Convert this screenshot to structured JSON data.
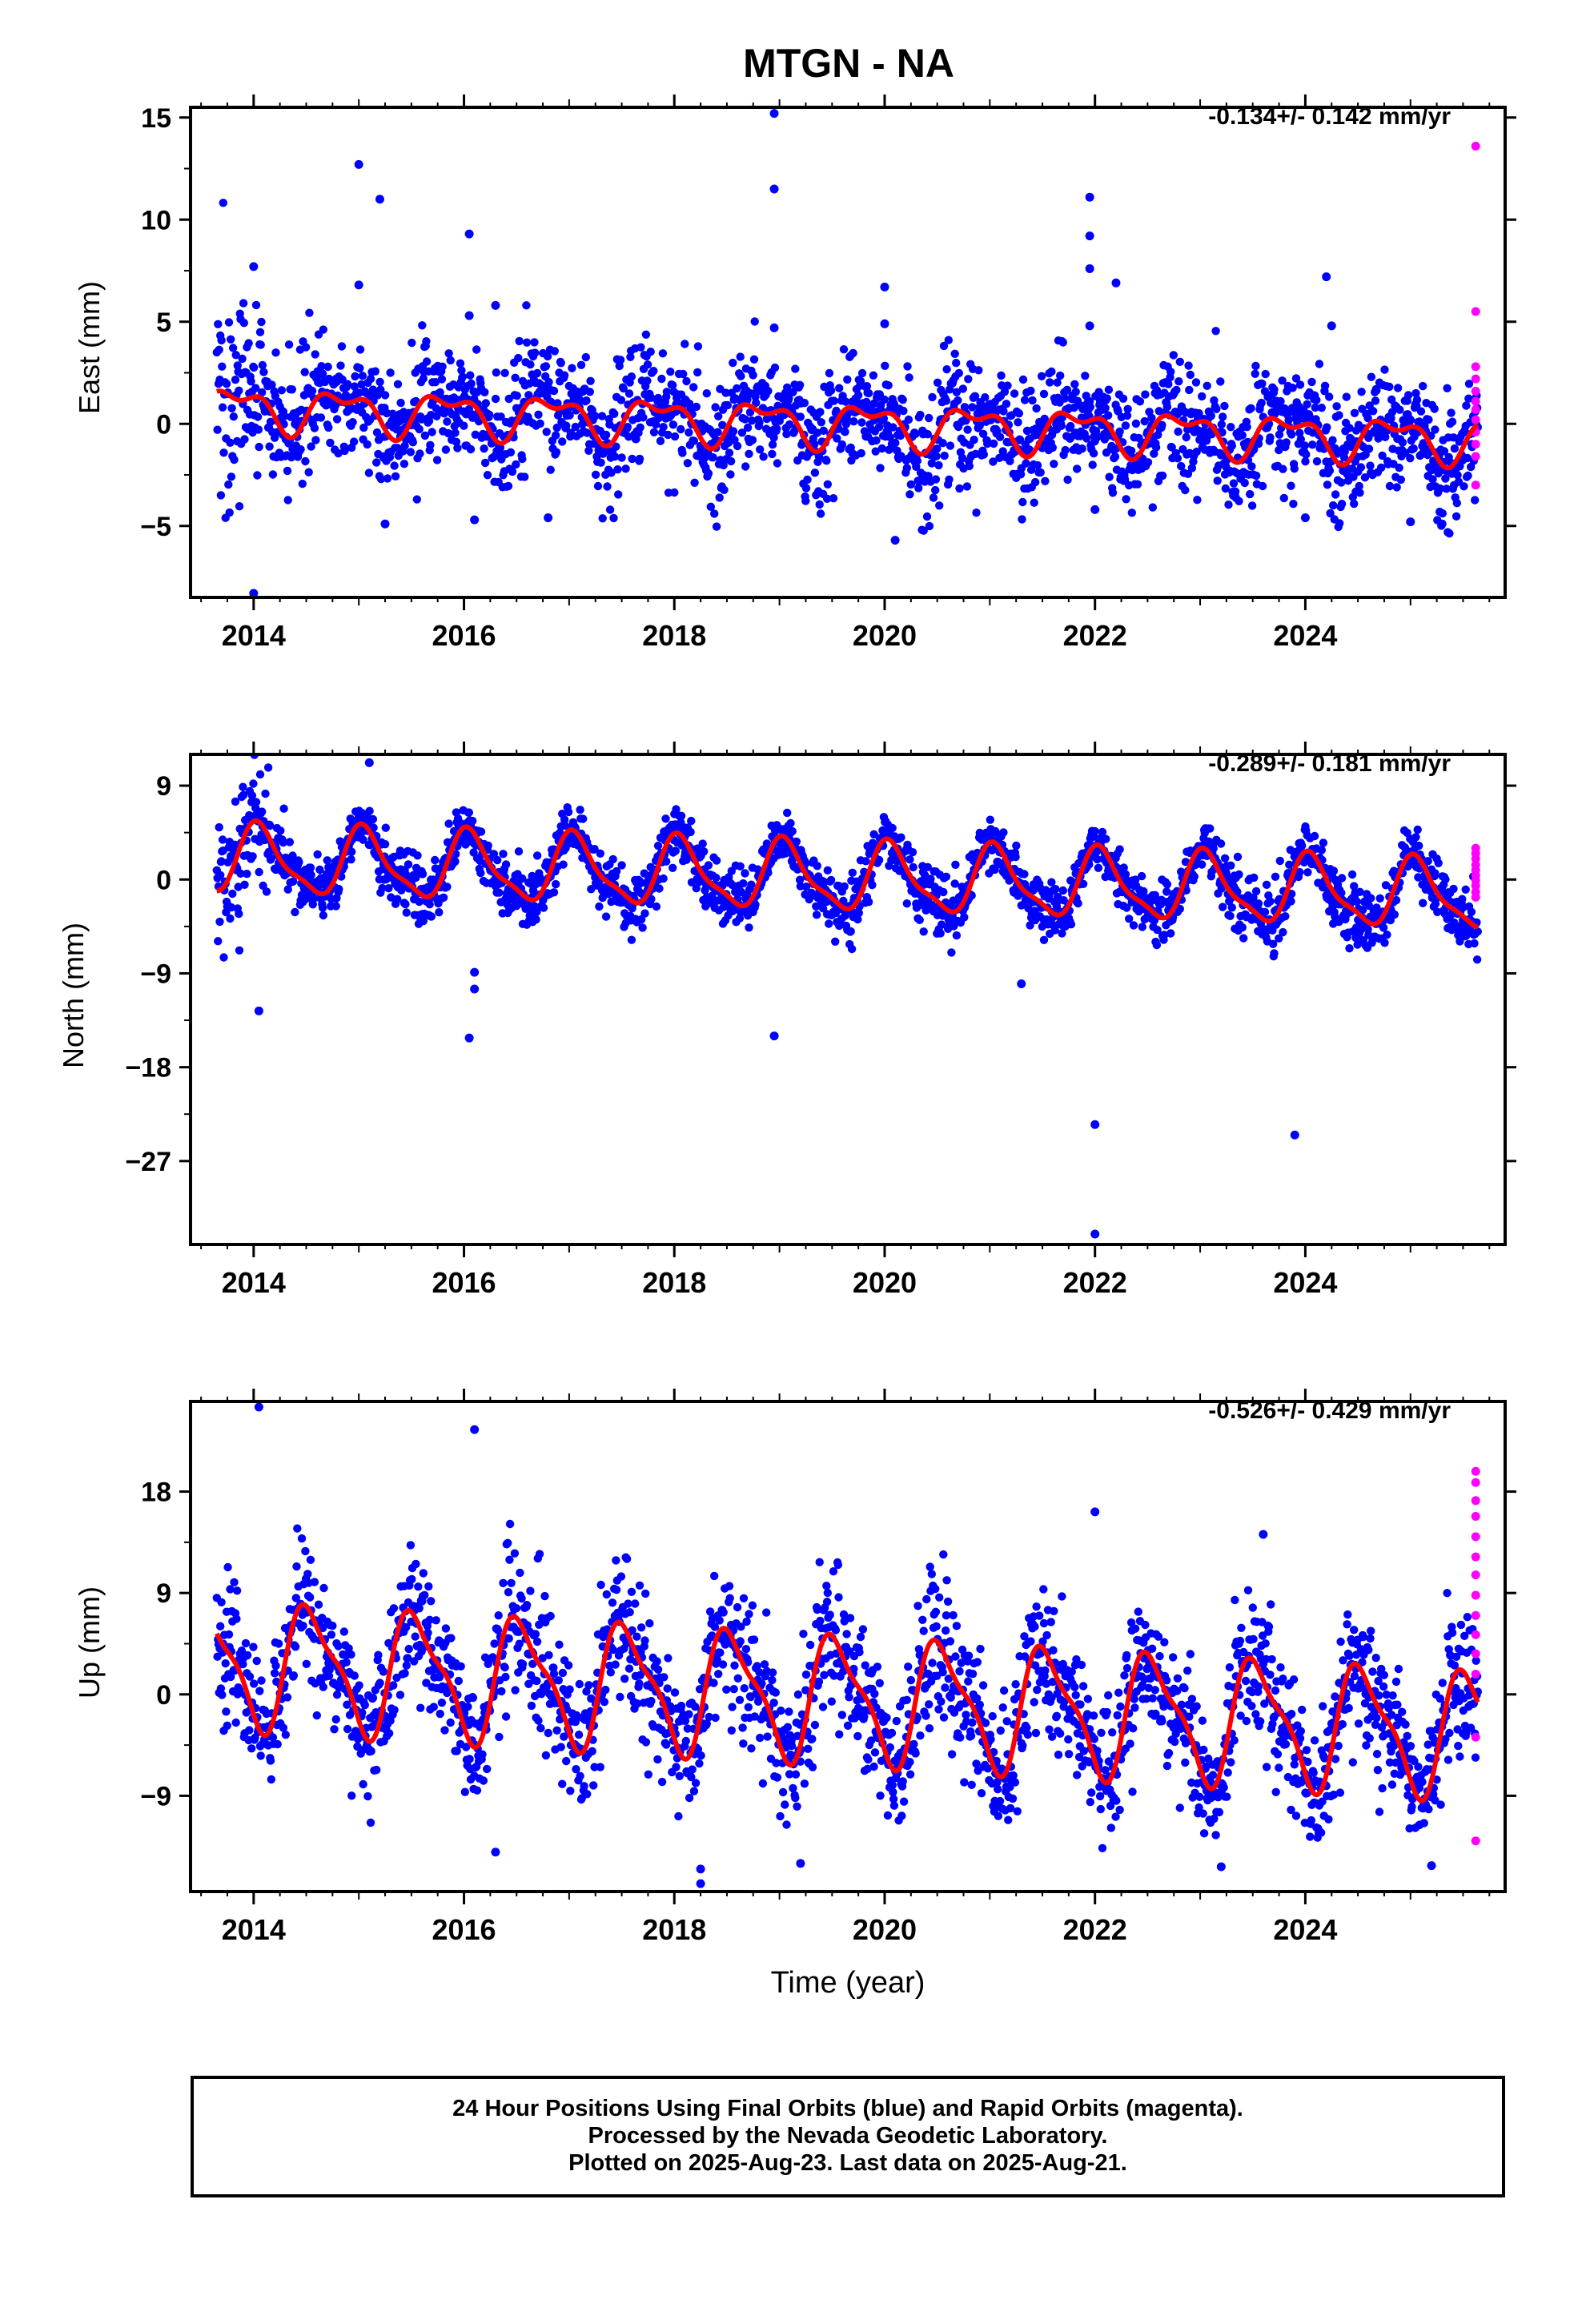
{
  "chart_data": {
    "type": "scatter",
    "title": "MTGN - NA",
    "xlabel": "Time (year)",
    "x_ticks": [
      "2014",
      "2016",
      "2018",
      "2020",
      "2022",
      "2024"
    ],
    "x_range": [
      2013.4,
      2025.9
    ],
    "data_span": [
      2013.65,
      2025.64
    ],
    "final_color": "#0000ff",
    "rapid_color": "#ff00ff",
    "fit_color": "#ff0000",
    "panels": [
      {
        "name": "east",
        "ylabel": "East (mm)",
        "rate_text": "-0.134+/- 0.142 mm/yr",
        "ylim": [
          -8.5,
          15.5
        ],
        "yticks": [
          15,
          10,
          5,
          0,
          -5
        ],
        "ytick_labels": [
          "15",
          "10",
          "5",
          "0",
          "−5"
        ],
        "rate": -0.134,
        "offset": 0.8,
        "annual_amp": 0.9,
        "annual_phase": 2.6,
        "semi_amp": 0.5,
        "semi_phase": 0.2,
        "noise": 1.35,
        "start_boost": 0.3,
        "outliers": [
          [
            2014.0,
            7.7
          ],
          [
            2014.0,
            -8.3
          ],
          [
            2015.0,
            12.7
          ],
          [
            2015.0,
            6.8
          ],
          [
            2015.2,
            11.0
          ],
          [
            2015.25,
            -4.9
          ],
          [
            2016.05,
            9.3
          ],
          [
            2016.1,
            -4.7
          ],
          [
            2016.3,
            5.8
          ],
          [
            2016.05,
            5.3
          ],
          [
            2016.8,
            -4.6
          ],
          [
            2018.95,
            15.2
          ],
          [
            2018.95,
            11.5
          ],
          [
            2018.95,
            4.7
          ],
          [
            2020.0,
            6.7
          ],
          [
            2020.0,
            4.9
          ],
          [
            2020.1,
            -5.7
          ],
          [
            2021.95,
            11.1
          ],
          [
            2021.95,
            9.2
          ],
          [
            2021.95,
            7.6
          ],
          [
            2021.95,
            4.8
          ],
          [
            2022.2,
            6.9
          ],
          [
            2022.0,
            -4.2
          ],
          [
            2024.2,
            7.2
          ],
          [
            2024.25,
            4.8
          ],
          [
            2024.0,
            -4.6
          ],
          [
            2025.0,
            -4.8
          ],
          [
            2025.3,
            -4.9
          ]
        ],
        "rapid_points": [
          [
            2025.62,
            13.6
          ],
          [
            2025.62,
            5.5
          ],
          [
            2025.62,
            2.8
          ],
          [
            2025.62,
            2.2
          ],
          [
            2025.62,
            1.6
          ],
          [
            2025.62,
            1.1
          ],
          [
            2025.62,
            0.7
          ],
          [
            2025.62,
            0.2
          ],
          [
            2025.62,
            -0.4
          ],
          [
            2025.62,
            -1.0
          ],
          [
            2025.62,
            -1.6
          ],
          [
            2025.62,
            -3.0
          ]
        ]
      },
      {
        "name": "north",
        "ylabel": "North (mm)",
        "rate_text": "-0.289+/- 0.181 mm/yr",
        "ylim": [
          -35,
          12
        ],
        "yticks": [
          9,
          0,
          -9,
          -18,
          -27
        ],
        "ytick_labels": [
          "9",
          "0",
          "−9",
          "−18",
          "−27"
        ],
        "rate": -0.289,
        "offset": 1.9,
        "annual_amp": 3.1,
        "annual_phase": 1.2,
        "semi_amp": 0.9,
        "semi_phase": 1.7,
        "noise": 1.3,
        "start_boost": 0.4,
        "outliers": [
          [
            2015.1,
            11.2
          ],
          [
            2014.05,
            -12.6
          ],
          [
            2016.05,
            -15.2
          ],
          [
            2016.1,
            -10.5
          ],
          [
            2016.1,
            -8.9
          ],
          [
            2018.95,
            -15.0
          ],
          [
            2021.3,
            -10.0
          ],
          [
            2022.0,
            -23.5
          ],
          [
            2022.0,
            -34.0
          ],
          [
            2023.9,
            -24.5
          ]
        ],
        "rapid_points": [
          [
            2025.62,
            3.0
          ],
          [
            2025.62,
            2.5
          ],
          [
            2025.62,
            2.0
          ],
          [
            2025.62,
            1.4
          ],
          [
            2025.62,
            0.9
          ],
          [
            2025.62,
            0.4
          ],
          [
            2025.62,
            -0.1
          ],
          [
            2025.62,
            -0.6
          ],
          [
            2025.62,
            -1.2
          ],
          [
            2025.62,
            -1.7
          ]
        ]
      },
      {
        "name": "up",
        "ylabel": "Up (mm)",
        "rate_text": "-0.526+/- 0.429 mm/yr",
        "ylim": [
          -17.5,
          26
        ],
        "yticks": [
          18,
          9,
          0,
          -9
        ],
        "ytick_labels": [
          "18",
          "9",
          "0",
          "−9"
        ],
        "rate": -0.526,
        "offset": 2.8,
        "annual_amp": 5.2,
        "annual_phase": 4.4,
        "semi_amp": 1.6,
        "semi_phase": 2.8,
        "noise": 2.9,
        "start_boost": 0.0,
        "outliers": [
          [
            2014.05,
            25.5
          ],
          [
            2016.1,
            23.5
          ],
          [
            2016.3,
            -14.0
          ],
          [
            2018.25,
            -16.8
          ],
          [
            2018.25,
            -15.5
          ],
          [
            2019.2,
            -15.0
          ],
          [
            2022.0,
            16.2
          ],
          [
            2023.2,
            -15.3
          ],
          [
            2023.6,
            14.2
          ],
          [
            2025.2,
            -15.2
          ]
        ],
        "rapid_points": [
          [
            2025.62,
            19.8
          ],
          [
            2025.62,
            18.8
          ],
          [
            2025.62,
            17.2
          ],
          [
            2025.62,
            15.8
          ],
          [
            2025.62,
            14.0
          ],
          [
            2025.62,
            12.2
          ],
          [
            2025.62,
            10.6
          ],
          [
            2025.62,
            8.8
          ],
          [
            2025.62,
            7.0
          ],
          [
            2025.62,
            5.3
          ],
          [
            2025.62,
            3.6
          ],
          [
            2025.62,
            1.8
          ],
          [
            2025.62,
            -3.8
          ],
          [
            2025.62,
            -13.0
          ]
        ]
      }
    ]
  },
  "footer": {
    "line1": "24 Hour Positions Using Final Orbits (blue) and Rapid Orbits (magenta).",
    "line2": "Processed by the Nevada Geodetic Laboratory.",
    "line3": "Plotted on 2025-Aug-23. Last data on 2025-Aug-21."
  }
}
